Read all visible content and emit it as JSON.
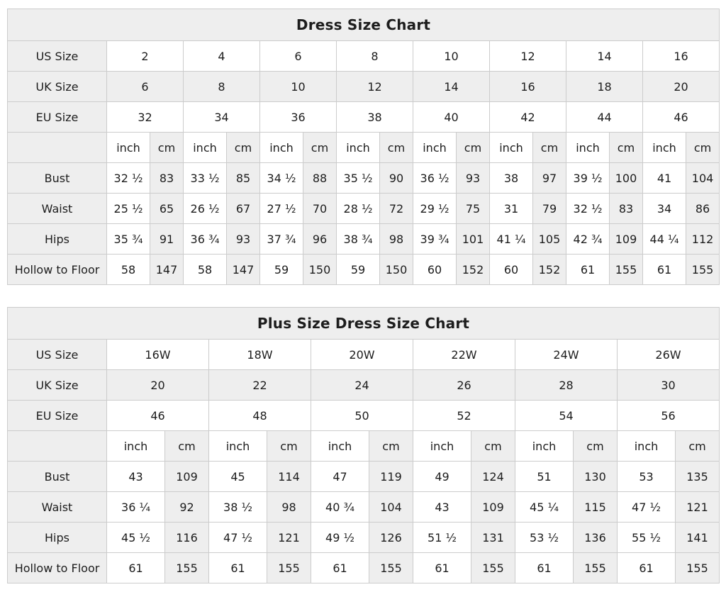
{
  "colors": {
    "cell_shaded": "#eeeeee",
    "border": "#cccccc",
    "text": "#1d1d1d",
    "background": "#ffffff"
  },
  "tables": [
    {
      "title": "Dress Size Chart",
      "unit_row_label": "",
      "unit_labels": [
        "inch",
        "cm"
      ],
      "size_rows": [
        {
          "label": "US Size",
          "shaded": false,
          "values": [
            "2",
            "4",
            "6",
            "8",
            "10",
            "12",
            "14",
            "16"
          ]
        },
        {
          "label": "UK Size",
          "shaded": true,
          "values": [
            "6",
            "8",
            "10",
            "12",
            "14",
            "16",
            "18",
            "20"
          ]
        },
        {
          "label": "EU Size",
          "shaded": false,
          "values": [
            "32",
            "34",
            "36",
            "38",
            "40",
            "42",
            "44",
            "46"
          ]
        }
      ],
      "measure_rows": [
        {
          "label": "Bust",
          "values": [
            [
              "32 ½",
              "83"
            ],
            [
              "33 ½",
              "85"
            ],
            [
              "34 ½",
              "88"
            ],
            [
              "35 ½",
              "90"
            ],
            [
              "36 ½",
              "93"
            ],
            [
              "38",
              "97"
            ],
            [
              "39 ½",
              "100"
            ],
            [
              "41",
              "104"
            ]
          ]
        },
        {
          "label": "Waist",
          "values": [
            [
              "25 ½",
              "65"
            ],
            [
              "26 ½",
              "67"
            ],
            [
              "27 ½",
              "70"
            ],
            [
              "28 ½",
              "72"
            ],
            [
              "29 ½",
              "75"
            ],
            [
              "31",
              "79"
            ],
            [
              "32 ½",
              "83"
            ],
            [
              "34",
              "86"
            ]
          ]
        },
        {
          "label": "Hips",
          "values": [
            [
              "35 ¾",
              "91"
            ],
            [
              "36 ¾",
              "93"
            ],
            [
              "37 ¾",
              "96"
            ],
            [
              "38 ¾",
              "98"
            ],
            [
              "39 ¾",
              "101"
            ],
            [
              "41 ¼",
              "105"
            ],
            [
              "42 ¾",
              "109"
            ],
            [
              "44 ¼",
              "112"
            ]
          ]
        },
        {
          "label": "Hollow to Floor",
          "values": [
            [
              "58",
              "147"
            ],
            [
              "58",
              "147"
            ],
            [
              "59",
              "150"
            ],
            [
              "59",
              "150"
            ],
            [
              "60",
              "152"
            ],
            [
              "60",
              "152"
            ],
            [
              "61",
              "155"
            ],
            [
              "61",
              "155"
            ]
          ]
        }
      ]
    },
    {
      "title": "Plus Size Dress Size Chart",
      "unit_row_label": "",
      "unit_labels": [
        "inch",
        "cm"
      ],
      "size_rows": [
        {
          "label": "US Size",
          "shaded": false,
          "values": [
            "16W",
            "18W",
            "20W",
            "22W",
            "24W",
            "26W"
          ]
        },
        {
          "label": "UK Size",
          "shaded": true,
          "values": [
            "20",
            "22",
            "24",
            "26",
            "28",
            "30"
          ]
        },
        {
          "label": "EU Size",
          "shaded": false,
          "values": [
            "46",
            "48",
            "50",
            "52",
            "54",
            "56"
          ]
        }
      ],
      "measure_rows": [
        {
          "label": "Bust",
          "values": [
            [
              "43",
              "109"
            ],
            [
              "45",
              "114"
            ],
            [
              "47",
              "119"
            ],
            [
              "49",
              "124"
            ],
            [
              "51",
              "130"
            ],
            [
              "53",
              "135"
            ]
          ]
        },
        {
          "label": "Waist",
          "values": [
            [
              "36 ¼",
              "92"
            ],
            [
              "38 ½",
              "98"
            ],
            [
              "40 ¾",
              "104"
            ],
            [
              "43",
              "109"
            ],
            [
              "45 ¼",
              "115"
            ],
            [
              "47 ½",
              "121"
            ]
          ]
        },
        {
          "label": "Hips",
          "values": [
            [
              "45 ½",
              "116"
            ],
            [
              "47 ½",
              "121"
            ],
            [
              "49 ½",
              "126"
            ],
            [
              "51 ½",
              "131"
            ],
            [
              "53 ½",
              "136"
            ],
            [
              "55 ½",
              "141"
            ]
          ]
        },
        {
          "label": "Hollow to Floor",
          "values": [
            [
              "61",
              "155"
            ],
            [
              "61",
              "155"
            ],
            [
              "61",
              "155"
            ],
            [
              "61",
              "155"
            ],
            [
              "61",
              "155"
            ],
            [
              "61",
              "155"
            ]
          ]
        }
      ]
    }
  ]
}
